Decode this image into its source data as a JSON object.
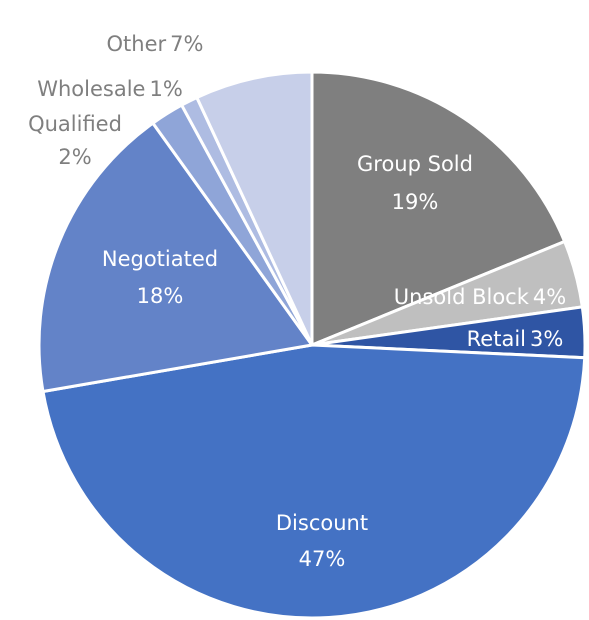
{
  "chart_data": {
    "type": "pie",
    "categories": [
      "Group Sold",
      "Unsold Block",
      "Retail",
      "Discount",
      "Negotiated",
      "Qualified",
      "Wholesale",
      "Other"
    ],
    "values": [
      19,
      4,
      3,
      47,
      18,
      2,
      1,
      7
    ],
    "value_labels": [
      "19%",
      "4%",
      "3%",
      "47%",
      "18%",
      "2%",
      "1%",
      "7%"
    ],
    "colors": [
      "#7f7f7f",
      "#bfbfbf",
      "#2f55a4",
      "#4472c4",
      "#6383c8",
      "#8fa5d8",
      "#aebce2",
      "#c7cfe9"
    ]
  }
}
